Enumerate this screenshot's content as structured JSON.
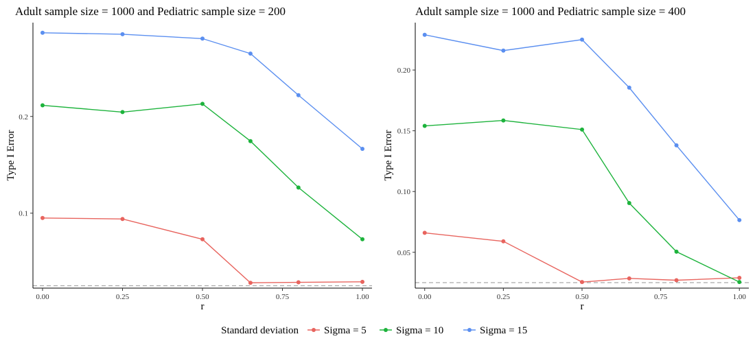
{
  "legend": {
    "title": "Standard deviation",
    "items": [
      {
        "label": "Sigma = 5",
        "color": "#E8645E"
      },
      {
        "label": "Sigma = 10",
        "color": "#1DB33C"
      },
      {
        "label": "Sigma = 15",
        "color": "#5B8FF0"
      }
    ]
  },
  "reference_line": {
    "y": 0.025,
    "color": "#A9A9A9",
    "style": "dashed"
  },
  "chart_data": [
    {
      "type": "line",
      "title": "Adult sample size = 1000 and Pediatric sample size = 200",
      "xlabel": "r",
      "ylabel": "Type I Error",
      "x": [
        0.0,
        0.25,
        0.5,
        0.65,
        0.8,
        1.0
      ],
      "xlim": [
        -0.03,
        1.03
      ],
      "ylim": [
        0.0225,
        0.297
      ],
      "xticks": [
        0.0,
        0.25,
        0.5,
        0.75,
        1.0
      ],
      "xtick_labels": [
        "0.00",
        "0.25",
        "0.50",
        "0.75",
        "1.00"
      ],
      "yticks": [
        0.1,
        0.2
      ],
      "ytick_labels": [
        "0.1",
        "0.2"
      ],
      "grid": false,
      "series": [
        {
          "name": "Sigma = 5",
          "values": [
            0.095,
            0.094,
            0.073,
            0.028,
            0.0285,
            0.029
          ]
        },
        {
          "name": "Sigma = 10",
          "values": [
            0.2115,
            0.2045,
            0.213,
            0.1745,
            0.1265,
            0.073
          ]
        },
        {
          "name": "Sigma = 15",
          "values": [
            0.2865,
            0.285,
            0.2805,
            0.265,
            0.222,
            0.1665
          ]
        }
      ]
    },
    {
      "type": "line",
      "title": "Adult sample size = 1000 and Pediatric sample size = 400",
      "xlabel": "r",
      "ylabel": "Type I Error",
      "x": [
        0.0,
        0.25,
        0.5,
        0.65,
        0.8,
        1.0
      ],
      "xlim": [
        -0.03,
        1.03
      ],
      "ylim": [
        0.0205,
        0.239
      ],
      "xticks": [
        0.0,
        0.25,
        0.5,
        0.75,
        1.0
      ],
      "xtick_labels": [
        "0.00",
        "0.25",
        "0.50",
        "0.75",
        "1.00"
      ],
      "yticks": [
        0.05,
        0.1,
        0.15,
        0.2
      ],
      "ytick_labels": [
        "0.05",
        "0.10",
        "0.15",
        "0.20"
      ],
      "grid": false,
      "series": [
        {
          "name": "Sigma = 5",
          "values": [
            0.066,
            0.059,
            0.0255,
            0.0285,
            0.027,
            0.029
          ]
        },
        {
          "name": "Sigma = 10",
          "values": [
            0.154,
            0.1585,
            0.151,
            0.0905,
            0.0505,
            0.0255
          ]
        },
        {
          "name": "Sigma = 15",
          "values": [
            0.229,
            0.216,
            0.225,
            0.1855,
            0.138,
            0.0765
          ]
        }
      ]
    }
  ]
}
